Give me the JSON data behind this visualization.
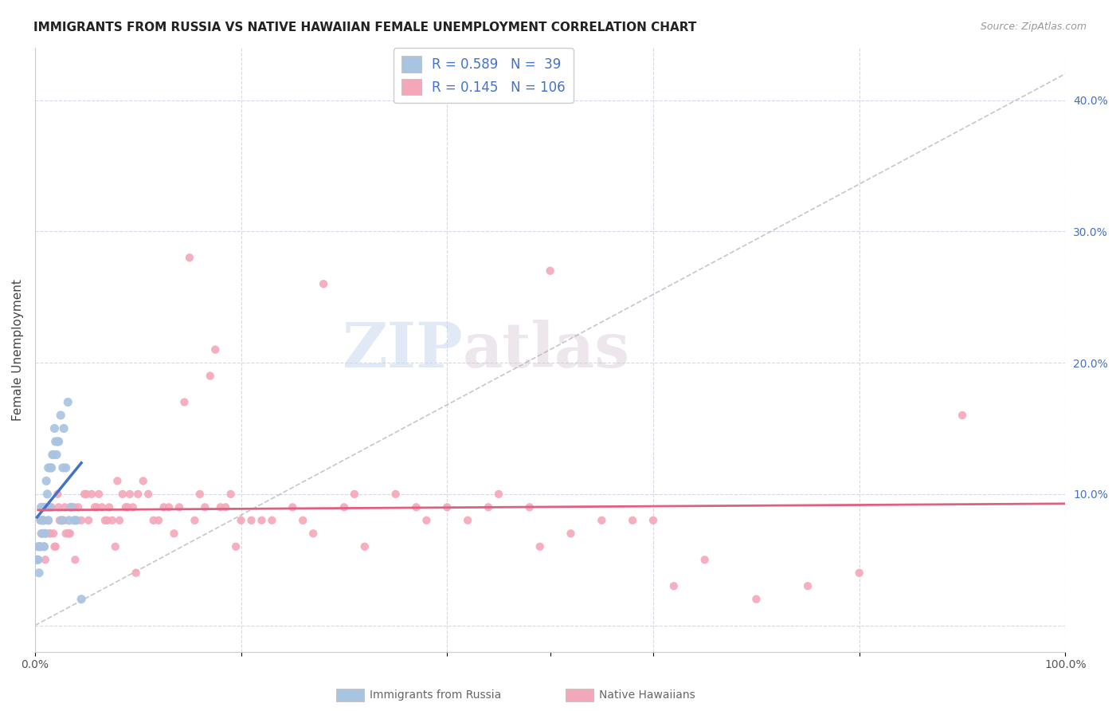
{
  "title": "IMMIGRANTS FROM RUSSIA VS NATIVE HAWAIIAN FEMALE UNEMPLOYMENT CORRELATION CHART",
  "source": "Source: ZipAtlas.com",
  "ylabel": "Female Unemployment",
  "russia_R": 0.589,
  "russia_N": 39,
  "hawaii_R": 0.145,
  "hawaii_N": 106,
  "russia_color": "#a8c4e0",
  "hawaii_color": "#f4a7b9",
  "russia_line_color": "#4472C4",
  "hawaii_line_color": "#E06080",
  "diagonal_color": "#b0b0b0",
  "legend_text_color": "#4472C4",
  "watermark_zip": "ZIP",
  "watermark_atlas": "atlas",
  "background_color": "#ffffff",
  "russia_scatter_x": [
    0.005,
    0.008,
    0.003,
    0.006,
    0.01,
    0.015,
    0.012,
    0.018,
    0.022,
    0.025,
    0.004,
    0.007,
    0.009,
    0.011,
    0.013,
    0.016,
    0.019,
    0.023,
    0.028,
    0.032,
    0.002,
    0.005,
    0.008,
    0.014,
    0.017,
    0.02,
    0.026,
    0.03,
    0.035,
    0.04,
    0.003,
    0.006,
    0.009,
    0.013,
    0.021,
    0.027,
    0.033,
    0.038,
    0.045
  ],
  "russia_scatter_y": [
    0.06,
    0.08,
    0.05,
    0.09,
    0.07,
    0.12,
    0.1,
    0.13,
    0.14,
    0.16,
    0.04,
    0.07,
    0.06,
    0.11,
    0.08,
    0.12,
    0.15,
    0.14,
    0.15,
    0.17,
    0.05,
    0.06,
    0.08,
    0.09,
    0.13,
    0.14,
    0.08,
    0.12,
    0.09,
    0.08,
    0.06,
    0.08,
    0.09,
    0.12,
    0.13,
    0.12,
    0.08,
    0.08,
    0.02
  ],
  "hawaii_scatter_x": [
    0.005,
    0.008,
    0.012,
    0.015,
    0.02,
    0.025,
    0.03,
    0.035,
    0.04,
    0.05,
    0.06,
    0.07,
    0.08,
    0.09,
    0.1,
    0.12,
    0.14,
    0.16,
    0.18,
    0.2,
    0.003,
    0.006,
    0.009,
    0.013,
    0.018,
    0.023,
    0.028,
    0.033,
    0.038,
    0.045,
    0.055,
    0.065,
    0.075,
    0.085,
    0.095,
    0.11,
    0.13,
    0.15,
    0.17,
    0.19,
    0.21,
    0.25,
    0.3,
    0.35,
    0.4,
    0.45,
    0.5,
    0.6,
    0.7,
    0.8,
    0.004,
    0.007,
    0.011,
    0.016,
    0.022,
    0.027,
    0.032,
    0.042,
    0.052,
    0.062,
    0.072,
    0.082,
    0.092,
    0.105,
    0.125,
    0.145,
    0.165,
    0.185,
    0.22,
    0.26,
    0.31,
    0.37,
    0.42,
    0.48,
    0.55,
    0.65,
    0.75,
    0.01,
    0.014,
    0.019,
    0.024,
    0.029,
    0.034,
    0.039,
    0.048,
    0.058,
    0.068,
    0.078,
    0.088,
    0.098,
    0.115,
    0.135,
    0.155,
    0.175,
    0.195,
    0.23,
    0.27,
    0.32,
    0.38,
    0.44,
    0.49,
    0.52,
    0.58,
    0.62,
    0.9,
    0.28
  ],
  "hawaii_scatter_y": [
    0.08,
    0.06,
    0.09,
    0.07,
    0.06,
    0.08,
    0.07,
    0.09,
    0.08,
    0.1,
    0.09,
    0.08,
    0.11,
    0.09,
    0.1,
    0.08,
    0.09,
    0.1,
    0.09,
    0.08,
    0.05,
    0.07,
    0.06,
    0.08,
    0.07,
    0.09,
    0.08,
    0.07,
    0.09,
    0.08,
    0.1,
    0.09,
    0.08,
    0.1,
    0.09,
    0.1,
    0.09,
    0.28,
    0.19,
    0.1,
    0.08,
    0.09,
    0.09,
    0.1,
    0.09,
    0.1,
    0.27,
    0.08,
    0.02,
    0.04,
    0.06,
    0.08,
    0.07,
    0.09,
    0.1,
    0.08,
    0.07,
    0.09,
    0.08,
    0.1,
    0.09,
    0.08,
    0.1,
    0.11,
    0.09,
    0.17,
    0.09,
    0.09,
    0.08,
    0.08,
    0.1,
    0.09,
    0.08,
    0.09,
    0.08,
    0.05,
    0.03,
    0.05,
    0.07,
    0.06,
    0.08,
    0.09,
    0.07,
    0.05,
    0.1,
    0.09,
    0.08,
    0.06,
    0.09,
    0.04,
    0.08,
    0.07,
    0.08,
    0.21,
    0.06,
    0.08,
    0.07,
    0.06,
    0.08,
    0.09,
    0.06,
    0.07,
    0.08,
    0.03,
    0.16,
    0.26
  ]
}
